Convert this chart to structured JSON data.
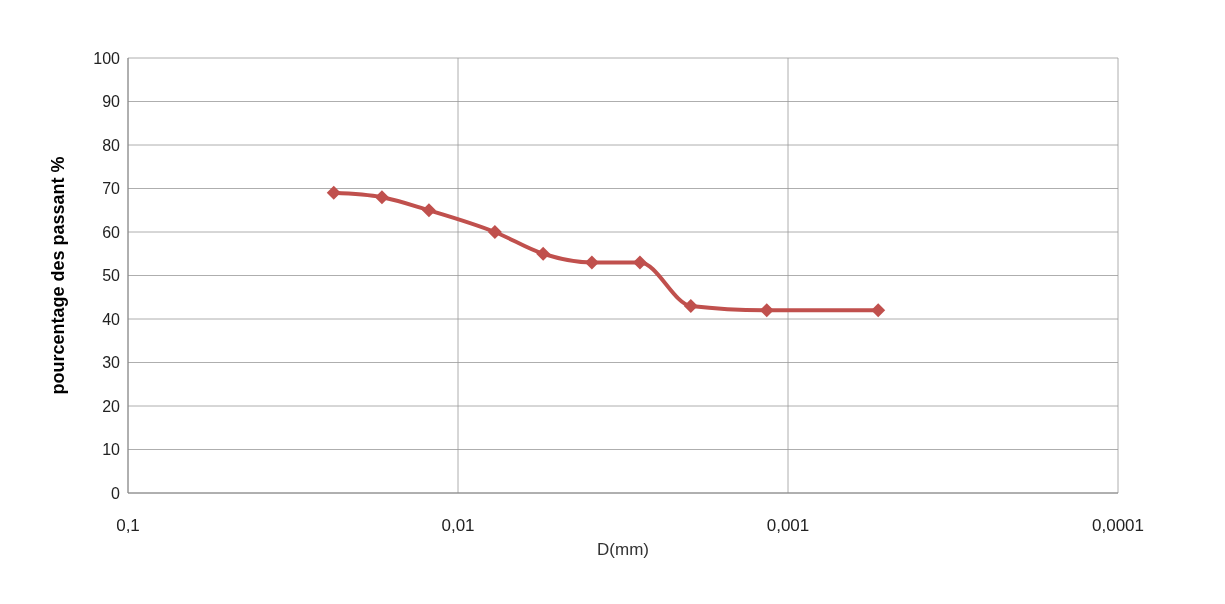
{
  "chart_data": {
    "type": "line",
    "xlabel": "D(mm)",
    "ylabel": "pourcentage des passant %",
    "x": [
      0.0238,
      0.017,
      0.01225,
      0.00773,
      0.00552,
      0.00393,
      0.00281,
      0.00197,
      0.00116,
      0.000533
    ],
    "series": [
      {
        "color": "#c0504d",
        "values": [
          69,
          68,
          65,
          60,
          55,
          53,
          53,
          43,
          42,
          42
        ]
      }
    ],
    "xlim": [
      0.1,
      0.0001
    ],
    "xticks": [
      {
        "value": 0.1,
        "label": "0,1"
      },
      {
        "value": 0.01,
        "label": "0,01"
      },
      {
        "value": 0.001,
        "label": "0,001"
      },
      {
        "value": 0.0001,
        "label": "0,0001"
      }
    ],
    "log": "x",
    "ylim": [
      0,
      100
    ],
    "yticks": [
      0,
      10,
      20,
      30,
      40,
      50,
      60,
      70,
      80,
      90,
      100
    ],
    "grid": true,
    "marker": "diamond",
    "line_style": "solid",
    "legend": false
  }
}
